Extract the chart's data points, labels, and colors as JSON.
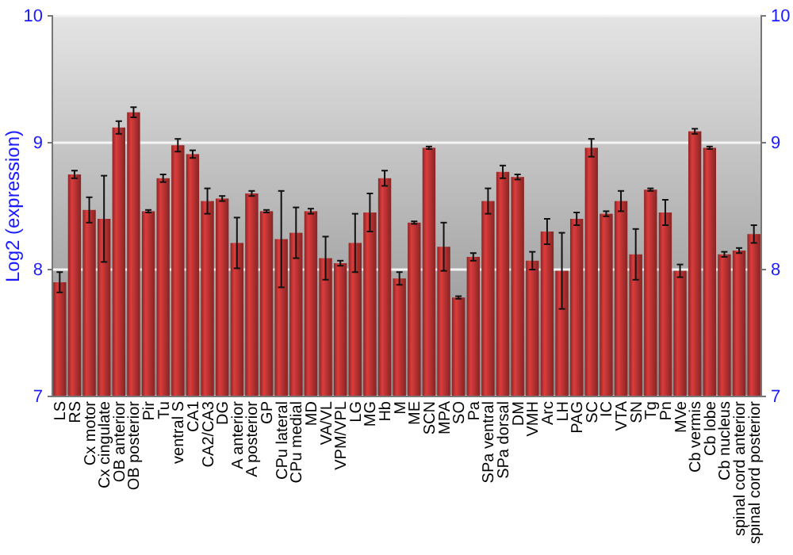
{
  "chart_data": {
    "type": "bar",
    "ylabel": "Log2 (expression)",
    "categories": [
      "LS",
      "RS",
      "Cx motor",
      "Cx cingulate",
      "OB anterior",
      "OB posterior",
      "Pir",
      "Tu",
      "ventral S",
      "CA1",
      "CA2/CA3",
      "DG",
      "A anterior",
      "A posterior",
      "GP",
      "CPu lateral",
      "CPu medial",
      "MD",
      "VA/VL",
      "VPM/VPL",
      "LG",
      "MG",
      "Hb",
      "M",
      "ME",
      "SCN",
      "MPA",
      "SO",
      "Pa",
      "SPa ventral",
      "SPa dorsal",
      "DM",
      "VMH",
      "Arc",
      "LH",
      "PAG",
      "SC",
      "IC",
      "VTA",
      "SN",
      "Tg",
      "Pn",
      "MVe",
      "Cb vermis",
      "Cb lobe",
      "Cb nucleus",
      "spinal cord anterior",
      "spinal cord posterior"
    ],
    "values": [
      7.9,
      8.75,
      8.47,
      8.4,
      9.12,
      9.24,
      8.46,
      8.72,
      8.98,
      8.91,
      8.54,
      8.56,
      8.21,
      8.6,
      8.46,
      8.24,
      8.29,
      8.46,
      8.09,
      8.05,
      8.21,
      8.45,
      8.72,
      7.93,
      8.37,
      8.96,
      8.18,
      7.78,
      8.1,
      8.54,
      8.77,
      8.73,
      8.07,
      8.3,
      7.99,
      8.4,
      8.96,
      8.44,
      8.54,
      8.12,
      8.63,
      8.45,
      7.99,
      9.09,
      8.96,
      8.12,
      8.15,
      8.28
    ],
    "errors": [
      0.08,
      0.03,
      0.1,
      0.34,
      0.05,
      0.04,
      0.01,
      0.03,
      0.05,
      0.03,
      0.1,
      0.02,
      0.2,
      0.02,
      0.01,
      0.38,
      0.2,
      0.02,
      0.17,
      0.02,
      0.23,
      0.15,
      0.06,
      0.05,
      0.01,
      0.01,
      0.19,
      0.01,
      0.03,
      0.1,
      0.05,
      0.02,
      0.07,
      0.1,
      0.3,
      0.05,
      0.07,
      0.02,
      0.08,
      0.2,
      0.01,
      0.1,
      0.05,
      0.02,
      0.01,
      0.02,
      0.02,
      0.07
    ],
    "color": "#b83232",
    "ylim": [
      7,
      10
    ],
    "yticks": [
      7,
      8,
      9,
      10
    ],
    "y2lim": [
      7,
      10
    ],
    "y2ticks": [
      7,
      8,
      9,
      10
    ],
    "grid": "y"
  }
}
